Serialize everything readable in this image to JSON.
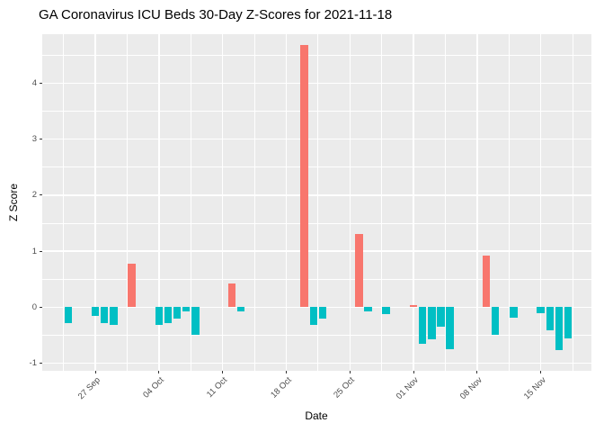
{
  "title": "GA Coronavirus ICU Beds 30-Day Z-Scores for 2021-11-18",
  "chart_data": {
    "type": "bar",
    "title": "GA Coronavirus ICU Beds 30-Day Z-Scores for 2021-11-18",
    "xlabel": "Date",
    "ylabel": "Z Score",
    "legend": "none",
    "grid": true,
    "panel_bg": "#EBEBEB",
    "grid_color": "#FFFFFF",
    "axis_text_color": "#4D4D4D",
    "text_color": "#000000",
    "colors": {
      "positive": "#F8766D",
      "negative": "#00BFC4"
    },
    "ylim": [
      -1.135,
      4.875
    ],
    "y_ticks": [
      -1,
      0,
      1,
      2,
      3,
      4
    ],
    "x_ticks": [
      {
        "date": "2021-09-27",
        "label": "27 Sep"
      },
      {
        "date": "2021-10-04",
        "label": "04 Oct"
      },
      {
        "date": "2021-10-11",
        "label": "11 Oct"
      },
      {
        "date": "2021-10-18",
        "label": "18 Oct"
      },
      {
        "date": "2021-10-25",
        "label": "25 Oct"
      },
      {
        "date": "2021-11-01",
        "label": "01 Nov"
      },
      {
        "date": "2021-11-08",
        "label": "08 Nov"
      },
      {
        "date": "2021-11-15",
        "label": "15 Nov"
      }
    ],
    "points": [
      {
        "date": "2021-09-24",
        "z": -0.28
      },
      {
        "date": "2021-09-27",
        "z": -0.16
      },
      {
        "date": "2021-09-28",
        "z": -0.28
      },
      {
        "date": "2021-09-29",
        "z": -0.31
      },
      {
        "date": "2021-10-01",
        "z": 0.78
      },
      {
        "date": "2021-10-04",
        "z": -0.32
      },
      {
        "date": "2021-10-05",
        "z": -0.28
      },
      {
        "date": "2021-10-06",
        "z": -0.2
      },
      {
        "date": "2021-10-07",
        "z": -0.08
      },
      {
        "date": "2021-10-08",
        "z": -0.5
      },
      {
        "date": "2021-10-12",
        "z": 0.42
      },
      {
        "date": "2021-10-13",
        "z": -0.08
      },
      {
        "date": "2021-10-20",
        "z": 4.69
      },
      {
        "date": "2021-10-21",
        "z": -0.31
      },
      {
        "date": "2021-10-22",
        "z": -0.21
      },
      {
        "date": "2021-10-26",
        "z": 1.3
      },
      {
        "date": "2021-10-27",
        "z": -0.08
      },
      {
        "date": "2021-10-29",
        "z": -0.12
      },
      {
        "date": "2021-11-01",
        "z": 0.04
      },
      {
        "date": "2021-11-02",
        "z": -0.66
      },
      {
        "date": "2021-11-03",
        "z": -0.57
      },
      {
        "date": "2021-11-04",
        "z": -0.35
      },
      {
        "date": "2021-11-05",
        "z": -0.75
      },
      {
        "date": "2021-11-09",
        "z": 0.92
      },
      {
        "date": "2021-11-10",
        "z": -0.5
      },
      {
        "date": "2021-11-12",
        "z": -0.18
      },
      {
        "date": "2021-11-15",
        "z": -0.1
      },
      {
        "date": "2021-11-16",
        "z": -0.41
      },
      {
        "date": "2021-11-17",
        "z": -0.77
      },
      {
        "date": "2021-11-18",
        "z": -0.55
      }
    ]
  }
}
